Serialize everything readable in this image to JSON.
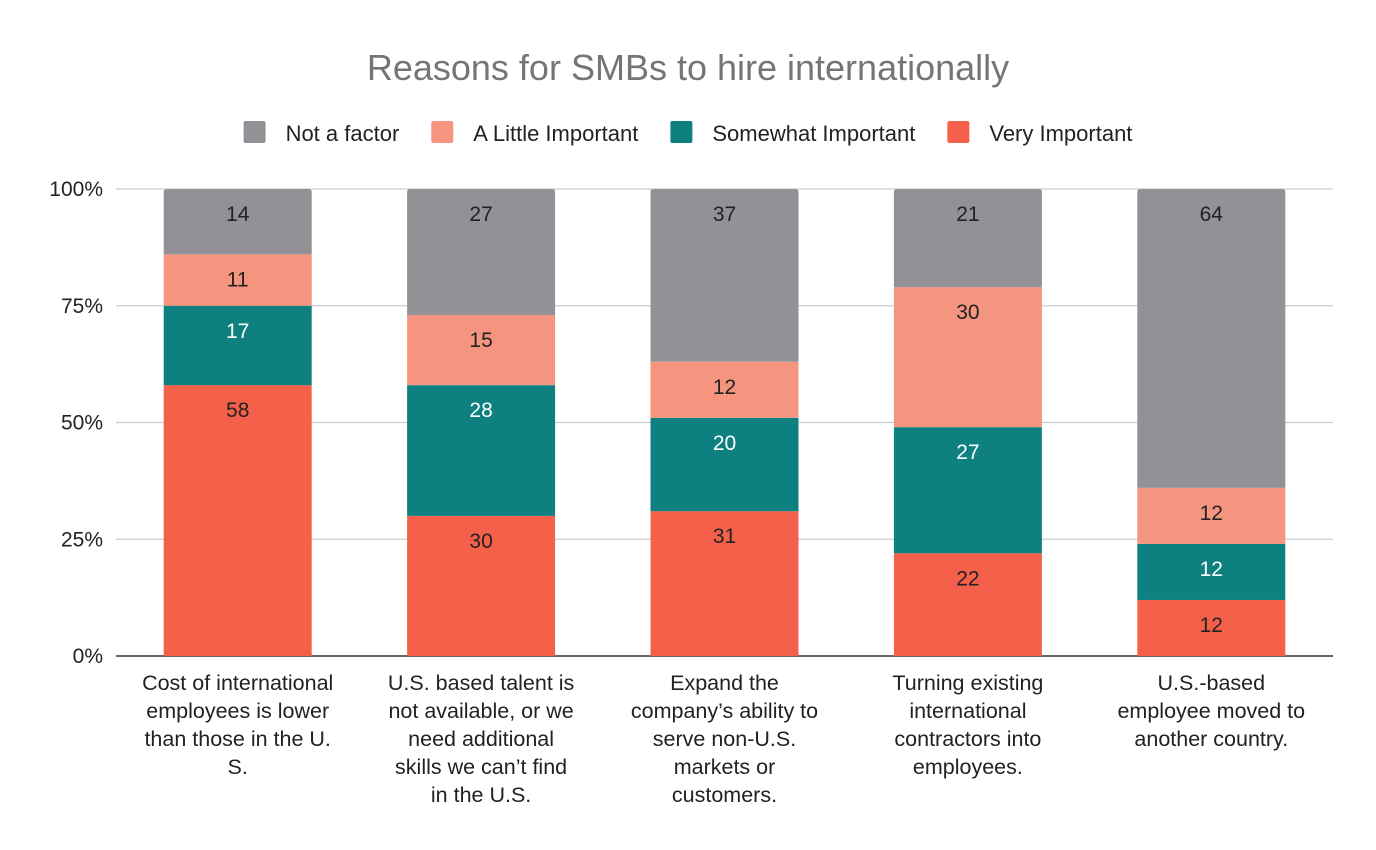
{
  "chart_data": {
    "type": "bar",
    "stacked": true,
    "percent_stacked": true,
    "title": "Reasons for SMBs to hire internationally",
    "xlabel": "",
    "ylabel": "",
    "ylim": [
      0,
      100
    ],
    "y_ticks": [
      "0%",
      "25%",
      "50%",
      "75%",
      "100%"
    ],
    "y_tick_values": [
      0,
      25,
      50,
      75,
      100
    ],
    "grid": true,
    "legend_position": "top",
    "categories": [
      [
        "Cost of international",
        "employees is lower",
        "than those in the U.",
        "S."
      ],
      [
        "U.S. based talent is",
        "not available, or we",
        "need additional",
        "skills we can’t find",
        "in the U.S."
      ],
      [
        "Expand the",
        "company’s ability to",
        "serve non-U.S.",
        "markets or",
        "customers."
      ],
      [
        "Turning existing",
        "international",
        "contractors into",
        "employees."
      ],
      [
        "U.S.-based",
        "employee moved to",
        "another country."
      ]
    ],
    "series": [
      {
        "name": "Very Important",
        "color": "#f4604a",
        "label_color": "#222222",
        "values": [
          58,
          30,
          31,
          22,
          12
        ]
      },
      {
        "name": "Somewhat Important",
        "color": "#0e8080",
        "label_color": "#ffffff",
        "values": [
          17,
          28,
          20,
          27,
          12
        ]
      },
      {
        "name": "A Little Important",
        "color": "#f5957f",
        "label_color": "#222222",
        "values": [
          11,
          15,
          12,
          30,
          12
        ]
      },
      {
        "name": "Not a factor",
        "color": "#939196",
        "label_color": "#222222",
        "values": [
          14,
          27,
          37,
          21,
          64
        ]
      }
    ],
    "legend_order": [
      "Not a factor",
      "A Little Important",
      "Somewhat Important",
      "Very Important"
    ]
  }
}
